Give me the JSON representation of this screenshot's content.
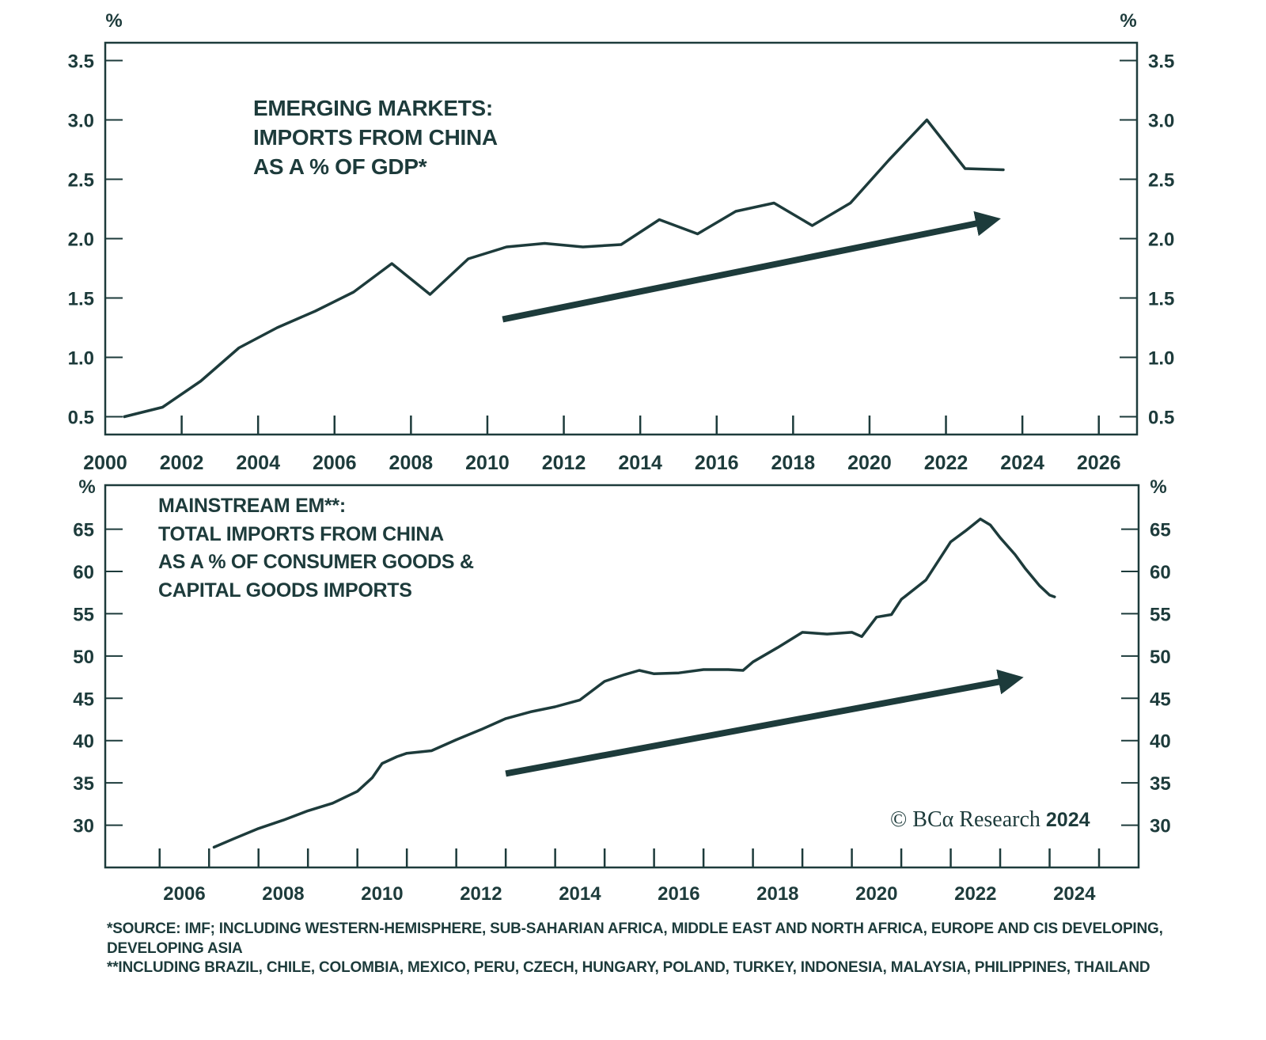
{
  "chart_data": [
    {
      "type": "line",
      "title": "EMERGING MARKETS:\nIMPORTS FROM CHINA\nAS A % OF GDP*",
      "title_lines": [
        "EMERGING MARKETS:",
        "IMPORTS FROM CHINA",
        "AS A % OF GDP*"
      ],
      "ylabel_left": "%",
      "ylabel_right": "%",
      "ylim": [
        0.35,
        3.65
      ],
      "xlim": [
        2000,
        2027
      ],
      "yticks": [
        "0.5",
        "1.0",
        "1.5",
        "2.0",
        "2.5",
        "3.0",
        "3.5"
      ],
      "xticks": [
        "2000",
        "2002",
        "2004",
        "2006",
        "2008",
        "2010",
        "2012",
        "2014",
        "2016",
        "2018",
        "2020",
        "2022",
        "2024",
        "2026"
      ],
      "grid": false,
      "series": [
        {
          "x": [
            2000.5,
            2001.5,
            2002.5,
            2003.5,
            2004.5,
            2005.5,
            2006.5,
            2007.5,
            2008.5,
            2009.5,
            2010.5,
            2011.5,
            2012.5,
            2013.5,
            2014.5,
            2015.5,
            2016.5,
            2017.5,
            2018.5,
            2019.5,
            2020.5,
            2021.5,
            2022.5,
            2023.5
          ],
          "y": [
            0.5,
            0.58,
            0.8,
            1.08,
            1.25,
            1.39,
            1.55,
            1.79,
            1.53,
            1.83,
            1.93,
            1.96,
            1.93,
            1.95,
            2.16,
            2.04,
            2.23,
            2.3,
            2.11,
            2.3,
            2.66,
            3.0,
            2.59,
            2.58
          ]
        }
      ],
      "trend_arrow": {
        "from": [
          2010.4,
          1.32
        ],
        "to": [
          2023.6,
          2.19
        ]
      },
      "color": "#1d3b3b"
    },
    {
      "type": "line",
      "title": "MAINSTREAM EM**:\nTOTAL IMPORTS FROM CHINA\nAS A % OF CONSUMER GOODS &\nCAPITAL GOODS IMPORTS",
      "title_lines": [
        "MAINSTREAM EM**:",
        "TOTAL IMPORTS FROM CHINA",
        "AS A % OF CONSUMER GOODS &",
        "CAPITAL GOODS IMPORTS"
      ],
      "ylabel_left": "%",
      "ylabel_right": "%",
      "ylim": [
        25,
        70.2
      ],
      "xlim": [
        2004.9,
        2025.8
      ],
      "yticks": [
        "30",
        "35",
        "40",
        "45",
        "50",
        "55",
        "60",
        "65"
      ],
      "xticks": [
        "2006",
        "2008",
        "2010",
        "2012",
        "2014",
        "2016",
        "2018",
        "2020",
        "2022",
        "2024"
      ],
      "grid": false,
      "series": [
        {
          "x": [
            2007.1,
            2007.5,
            2008,
            2008.5,
            2009,
            2009.5,
            2010,
            2010.3,
            2010.5,
            2010.8,
            2011,
            2011.5,
            2012,
            2012.5,
            2013,
            2013.5,
            2014,
            2014.5,
            2015,
            2015.4,
            2015.7,
            2016,
            2016.5,
            2017,
            2017.5,
            2017.8,
            2018,
            2018.5,
            2019,
            2019.5,
            2020,
            2020.2,
            2020.5,
            2020.8,
            2021,
            2021.5,
            2022,
            2022.3,
            2022.6,
            2022.8,
            2023,
            2023.3,
            2023.5,
            2023.8,
            2024,
            2024.1
          ],
          "y": [
            27.4,
            28.4,
            29.6,
            30.6,
            31.7,
            32.6,
            34.0,
            35.6,
            37.3,
            38.1,
            38.5,
            38.8,
            40.1,
            41.3,
            42.6,
            43.4,
            44.0,
            44.8,
            47.0,
            47.8,
            48.3,
            47.9,
            48.0,
            48.4,
            48.4,
            48.3,
            49.3,
            51.0,
            52.8,
            52.6,
            52.8,
            52.3,
            54.6,
            54.9,
            56.7,
            59.0,
            63.5,
            64.8,
            66.2,
            65.5,
            64.0,
            62.0,
            60.4,
            58.3,
            57.2,
            57.0
          ]
        }
      ],
      "trend_arrow": {
        "from": [
          2013.0,
          36.1
        ],
        "to": [
          2023.6,
          47.9
        ]
      },
      "color": "#1d3b3b"
    }
  ],
  "copyright": {
    "prefix": "© BCα Research",
    "year": "2024"
  },
  "footnotes": [
    "*SOURCE: IMF; INCLUDING WESTERN-HEMISPHERE, SUB-SAHARIAN AFRICA, MIDDLE EAST AND NORTH AFRICA, EUROPE AND CIS DEVELOPING, DEVELOPING ASIA",
    "**INCLUDING BRAZIL, CHILE, COLOMBIA, MEXICO, PERU, CZECH, HUNGARY, POLAND, TURKEY, INDONESIA, MALAYSIA, PHILIPPINES, THAILAND"
  ]
}
